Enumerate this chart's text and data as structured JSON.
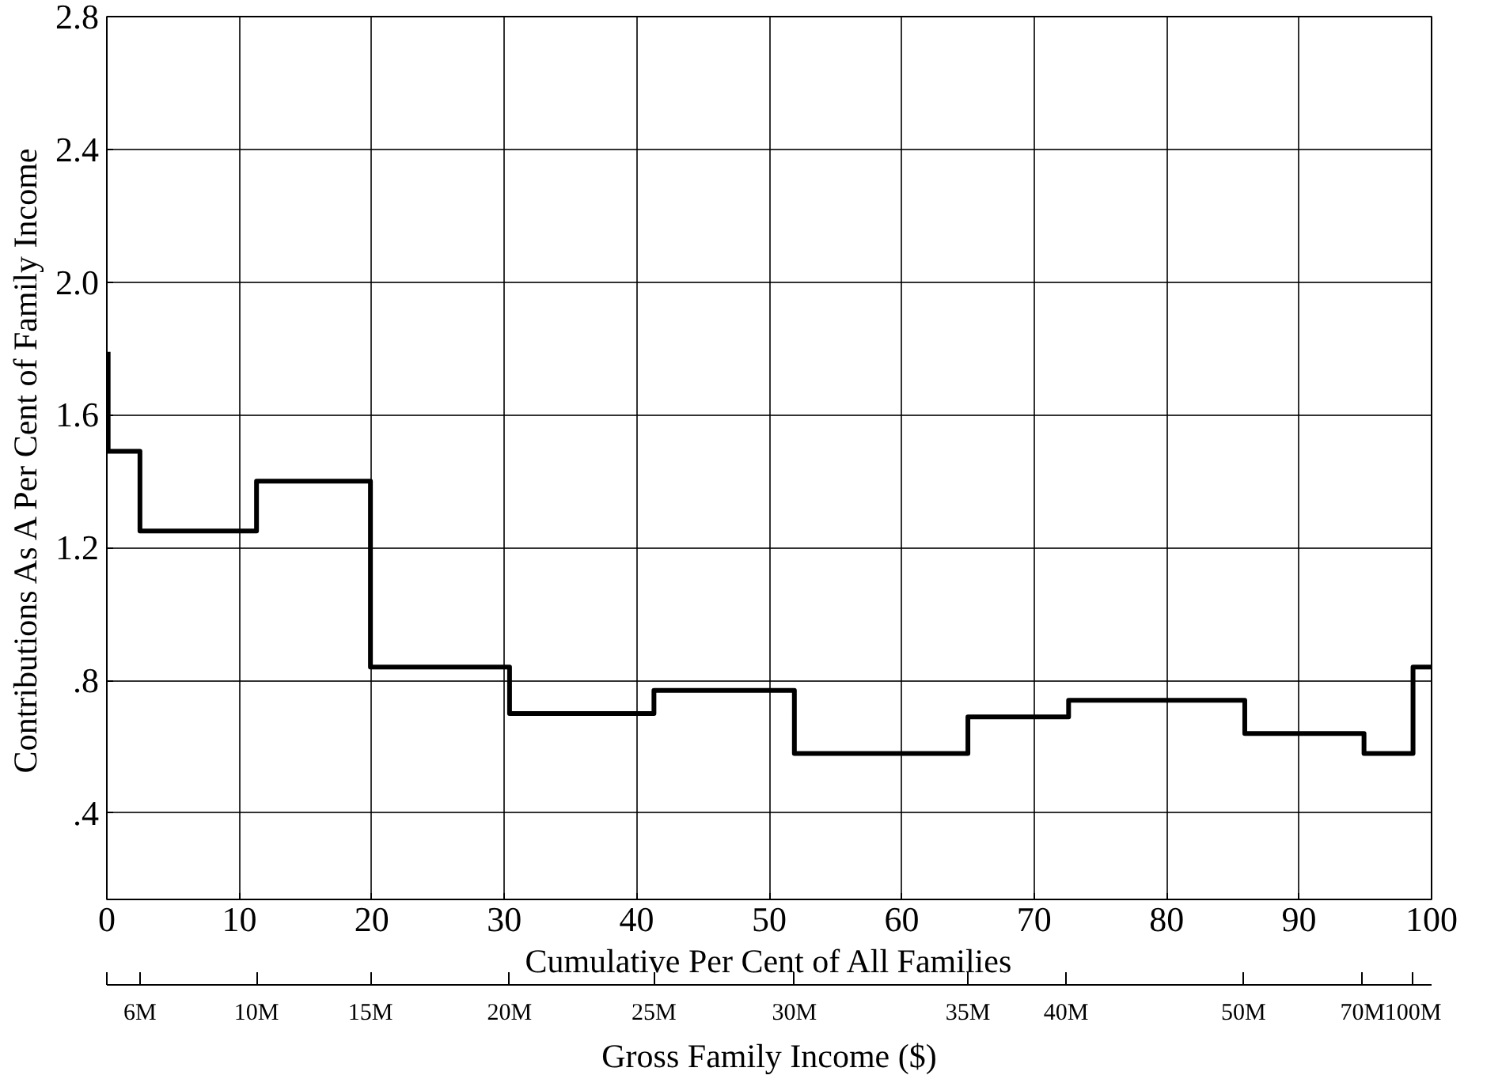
{
  "chart_data": {
    "type": "step",
    "xlabel": "Cumulative Per Cent of All Families",
    "ylabel": "Contributions As A Per Cent of Family Income",
    "x2label": "Gross Family Income ($)",
    "x": [
      0.1,
      0.1,
      2.5,
      11.3,
      19.9,
      30.4,
      41.3,
      51.9,
      65.0,
      72.6,
      85.9,
      94.9,
      98.6,
      100
    ],
    "series": [
      {
        "color": "#000000",
        "values": [
          1.79,
          1.49,
          1.25,
          1.4,
          0.84,
          0.7,
          0.77,
          0.58,
          0.69,
          0.74,
          0.64,
          0.58,
          0.84,
          0.84
        ]
      }
    ],
    "xlim": [
      0,
      100
    ],
    "xticks": [
      0,
      10,
      20,
      30,
      40,
      50,
      60,
      70,
      80,
      90,
      100
    ],
    "ylim": [
      0.14,
      2.8
    ],
    "yticks": [
      {
        "value": 0.4,
        "label": ".4"
      },
      {
        "value": 0.8,
        "label": ".8"
      },
      {
        "value": 1.2,
        "label": "1.2"
      },
      {
        "value": 1.6,
        "label": "1.6"
      },
      {
        "value": 2.0,
        "label": "2.0"
      },
      {
        "value": 2.4,
        "label": "2.4"
      },
      {
        "value": 2.8,
        "label": "2.8"
      }
    ],
    "annotations": [
      {
        "text": "6M",
        "x": 2.5
      },
      {
        "text": "10M",
        "x": 11.3
      },
      {
        "text": "15M",
        "x": 19.9
      },
      {
        "text": "20M",
        "x": 30.4
      },
      {
        "text": "25M",
        "x": 41.3
      },
      {
        "text": "30M",
        "x": 51.9
      },
      {
        "text": "35M",
        "x": 65.0
      },
      {
        "text": "40M",
        "x": 72.4
      },
      {
        "text": "50M",
        "x": 85.8
      },
      {
        "text": "70M",
        "x": 94.8
      },
      {
        "text": "100M",
        "x": 98.6
      }
    ],
    "grid": true,
    "line_style": "solid"
  }
}
